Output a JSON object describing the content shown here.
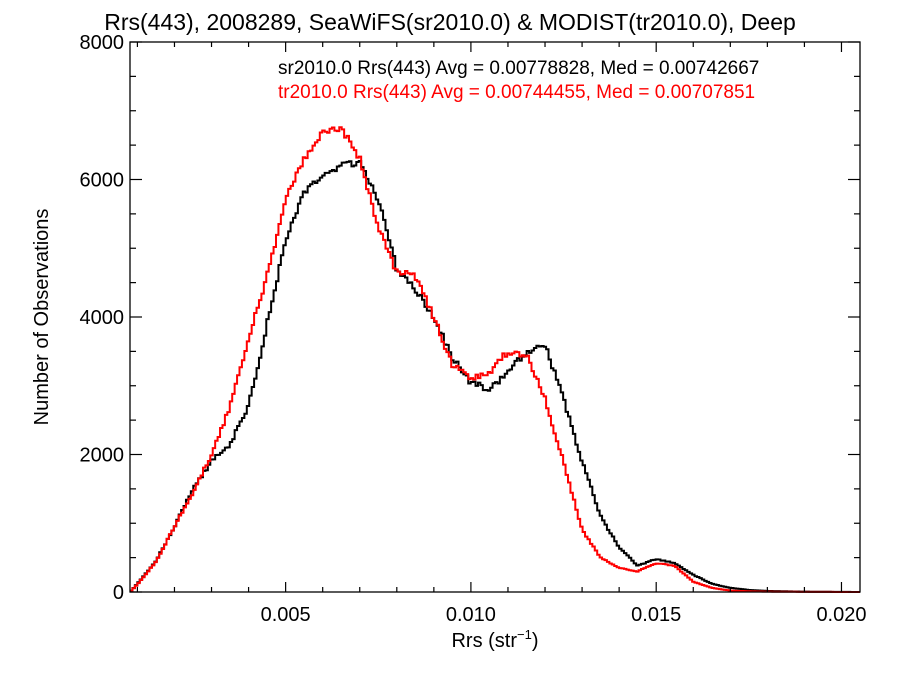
{
  "chart_data": {
    "type": "line",
    "title": "Rrs(443), 2008289, SeaWiFS(sr2010.0) & MODIST(tr2010.0), Deep",
    "xlabel_main": "Rrs (str",
    "xlabel_sup": "−1",
    "xlabel_close": ")",
    "ylabel": "Number of Observations",
    "xlim": [
      0.0008,
      0.0205
    ],
    "ylim": [
      0,
      8000
    ],
    "x_ticks": [
      0.005,
      0.01,
      0.015,
      0.02
    ],
    "x_tick_labels": [
      "0.005",
      "0.010",
      "0.015",
      "0.020"
    ],
    "y_ticks": [
      0,
      2000,
      4000,
      6000,
      8000
    ],
    "y_tick_labels": [
      "0",
      "2000",
      "4000",
      "6000",
      "8000"
    ],
    "grid": false,
    "annotations": [
      {
        "text": "sr2010.0 Rrs(443) Avg = 0.00778828, Med = 0.00742667",
        "color": "#000000"
      },
      {
        "text": "tr2010.0 Rrs(443) Avg = 0.00744455, Med = 0.00707851",
        "color": "#ff0000"
      }
    ],
    "series": [
      {
        "color": "#000000",
        "x": [
          0.0008,
          0.001,
          0.0015,
          0.002,
          0.0025,
          0.003,
          0.0035,
          0.004,
          0.0045,
          0.005,
          0.0055,
          0.006,
          0.0065,
          0.007,
          0.0075,
          0.008,
          0.0085,
          0.009,
          0.0095,
          0.01,
          0.0105,
          0.011,
          0.0115,
          0.012,
          0.0125,
          0.013,
          0.0135,
          0.014,
          0.0145,
          0.015,
          0.0155,
          0.016,
          0.0165,
          0.017,
          0.0175,
          0.018,
          0.019,
          0.0205
        ],
        "y": [
          0,
          120,
          450,
          950,
          1500,
          1900,
          2150,
          2700,
          3900,
          5100,
          5800,
          6050,
          6200,
          6250,
          5700,
          4700,
          4400,
          4000,
          3400,
          3050,
          2950,
          3200,
          3500,
          3600,
          2800,
          1900,
          1100,
          650,
          380,
          480,
          420,
          250,
          120,
          60,
          30,
          15,
          5,
          0
        ]
      },
      {
        "color": "#ff0000",
        "x": [
          0.0008,
          0.001,
          0.0015,
          0.002,
          0.0025,
          0.003,
          0.0035,
          0.004,
          0.0045,
          0.005,
          0.0055,
          0.006,
          0.0065,
          0.007,
          0.0075,
          0.008,
          0.0085,
          0.009,
          0.0095,
          0.01,
          0.0105,
          0.011,
          0.0115,
          0.012,
          0.0125,
          0.013,
          0.0135,
          0.014,
          0.0145,
          0.015,
          0.0155,
          0.016,
          0.0165,
          0.017,
          0.0175,
          0.018,
          0.019,
          0.0205
        ],
        "y": [
          0,
          110,
          440,
          950,
          1450,
          2000,
          2700,
          3700,
          4600,
          5700,
          6300,
          6700,
          6750,
          6300,
          5300,
          4650,
          4600,
          4000,
          3300,
          3100,
          3200,
          3500,
          3450,
          2800,
          1900,
          900,
          500,
          350,
          300,
          420,
          380,
          150,
          60,
          20,
          10,
          5,
          2,
          0
        ]
      }
    ]
  }
}
